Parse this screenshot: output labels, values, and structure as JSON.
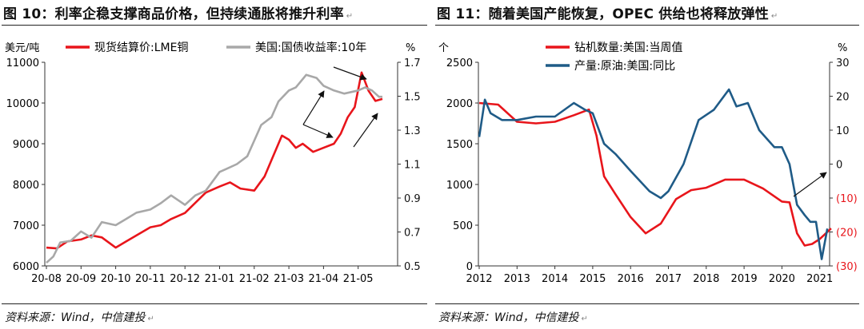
{
  "left": {
    "title": "图 10：利率企稳支撑商品价格，但持续通胀将推升利率",
    "source": "资料来源：Wind，中信建投",
    "para_mark": "↵"
  },
  "right": {
    "title": "图 11：随着美国产能恢复，OPEC 供给也将释放弹性",
    "source": "资料来源：Wind，中信建投",
    "para_mark": "↵"
  },
  "chart_data": [
    {
      "type": "line",
      "left_axis_unit": "美元/吨",
      "right_axis_unit": "%",
      "x_ticks": [
        "20-08",
        "20-09",
        "20-10",
        "20-11",
        "20-12",
        "21-01",
        "21-02",
        "21-03",
        "21-04",
        "21-05"
      ],
      "y_left": {
        "min": 6000,
        "max": 11000,
        "ticks": [
          6000,
          7000,
          8000,
          9000,
          10000,
          11000
        ]
      },
      "y_right": {
        "min": 0.5,
        "max": 1.8,
        "ticks": [
          "0.5",
          "0.7",
          "0.9",
          "1.1",
          "1.3",
          "1.5",
          "1.7"
        ]
      },
      "grid": false,
      "legend_position": "top",
      "series": [
        {
          "name": "现货结算价:LME铜",
          "axis": "left",
          "color": "#e8151b",
          "x": [
            0,
            0.3,
            0.6,
            1,
            1.3,
            1.6,
            2,
            2.3,
            2.6,
            3,
            3.3,
            3.6,
            4,
            4.3,
            4.6,
            5,
            5.3,
            5.6,
            6,
            6.3,
            6.5,
            6.8,
            7,
            7.2,
            7.4,
            7.7,
            8,
            8.3,
            8.5,
            8.7,
            8.9,
            9.1,
            9.3,
            9.5,
            9.7
          ],
          "values": [
            6450,
            6430,
            6600,
            6650,
            6750,
            6700,
            6450,
            6600,
            6750,
            6950,
            7000,
            7150,
            7300,
            7550,
            7800,
            7950,
            8050,
            7900,
            7850,
            8200,
            8600,
            9200,
            9100,
            8900,
            9000,
            8800,
            8900,
            9000,
            9250,
            9650,
            9900,
            10750,
            10300,
            10050,
            10100
          ]
        },
        {
          "name": "美国:国债收益率:10年",
          "axis": "right",
          "color": "#a8a8a8",
          "x": [
            0,
            0.2,
            0.4,
            0.7,
            1,
            1.3,
            1.6,
            2,
            2.3,
            2.6,
            3,
            3.3,
            3.6,
            4,
            4.3,
            4.6,
            5,
            5.2,
            5.5,
            5.8,
            6,
            6.2,
            6.5,
            6.7,
            7,
            7.2,
            7.5,
            7.8,
            8,
            8.3,
            8.6,
            9,
            9.2,
            9.4,
            9.6,
            9.7
          ],
          "values": [
            0.52,
            0.56,
            0.65,
            0.66,
            0.72,
            0.68,
            0.78,
            0.76,
            0.8,
            0.84,
            0.86,
            0.9,
            0.95,
            0.89,
            0.95,
            0.98,
            1.1,
            1.12,
            1.15,
            1.2,
            1.3,
            1.4,
            1.45,
            1.55,
            1.62,
            1.64,
            1.72,
            1.7,
            1.65,
            1.62,
            1.6,
            1.62,
            1.64,
            1.62,
            1.58,
            1.58
          ]
        }
      ]
    },
    {
      "type": "line",
      "left_axis_unit": "个",
      "right_axis_unit": "%",
      "x_ticks": [
        "2012",
        "2013",
        "2014",
        "2015",
        "2016",
        "2017",
        "2018",
        "2019",
        "2020",
        "2021"
      ],
      "y_left": {
        "min": 0,
        "max": 2500,
        "ticks": [
          0,
          500,
          1000,
          1500,
          2000,
          2500
        ]
      },
      "y_right": {
        "min": -30,
        "max": 30,
        "ticks": [
          "(30)",
          "(20)",
          "(10)",
          "0",
          "10",
          "20",
          "30"
        ],
        "negative_color": "#e8151b"
      },
      "grid": false,
      "legend_position": "top",
      "series": [
        {
          "name": "钻机数量:美国:当周值",
          "axis": "left",
          "color": "#e8151b",
          "x": [
            2012,
            2012.5,
            2013,
            2013.5,
            2014,
            2014.5,
            2014.9,
            2015.1,
            2015.3,
            2015.6,
            2016,
            2016.4,
            2016.8,
            2017.2,
            2017.6,
            2018,
            2018.5,
            2019,
            2019.5,
            2020,
            2020.2,
            2020.4,
            2020.6,
            2020.8,
            2021,
            2021.3
          ],
          "values": [
            2000,
            1980,
            1770,
            1750,
            1770,
            1850,
            1920,
            1600,
            1100,
            880,
            600,
            400,
            520,
            820,
            930,
            960,
            1060,
            1060,
            950,
            790,
            780,
            400,
            250,
            270,
            330,
            460
          ]
        },
        {
          "name": "产量:原油:美国:同比",
          "axis": "right",
          "color": "#1f5b87",
          "x": [
            2012,
            2012.15,
            2012.3,
            2012.6,
            2013,
            2013.5,
            2014,
            2014.5,
            2014.8,
            2015,
            2015.3,
            2015.6,
            2016,
            2016.5,
            2016.8,
            2017,
            2017.4,
            2017.8,
            2018.2,
            2018.6,
            2018.8,
            2019.1,
            2019.4,
            2019.8,
            2020,
            2020.2,
            2020.4,
            2020.6,
            2020.75,
            2020.9,
            2021.05,
            2021.2
          ],
          "values": [
            8,
            19,
            15,
            13,
            13,
            14,
            14,
            18,
            16,
            15,
            6,
            3,
            -2,
            -8,
            -10,
            -8,
            0,
            13,
            16,
            22,
            17,
            18,
            10,
            5,
            5,
            0,
            -12,
            -15,
            -17,
            -17,
            -28,
            -19
          ]
        }
      ]
    }
  ]
}
